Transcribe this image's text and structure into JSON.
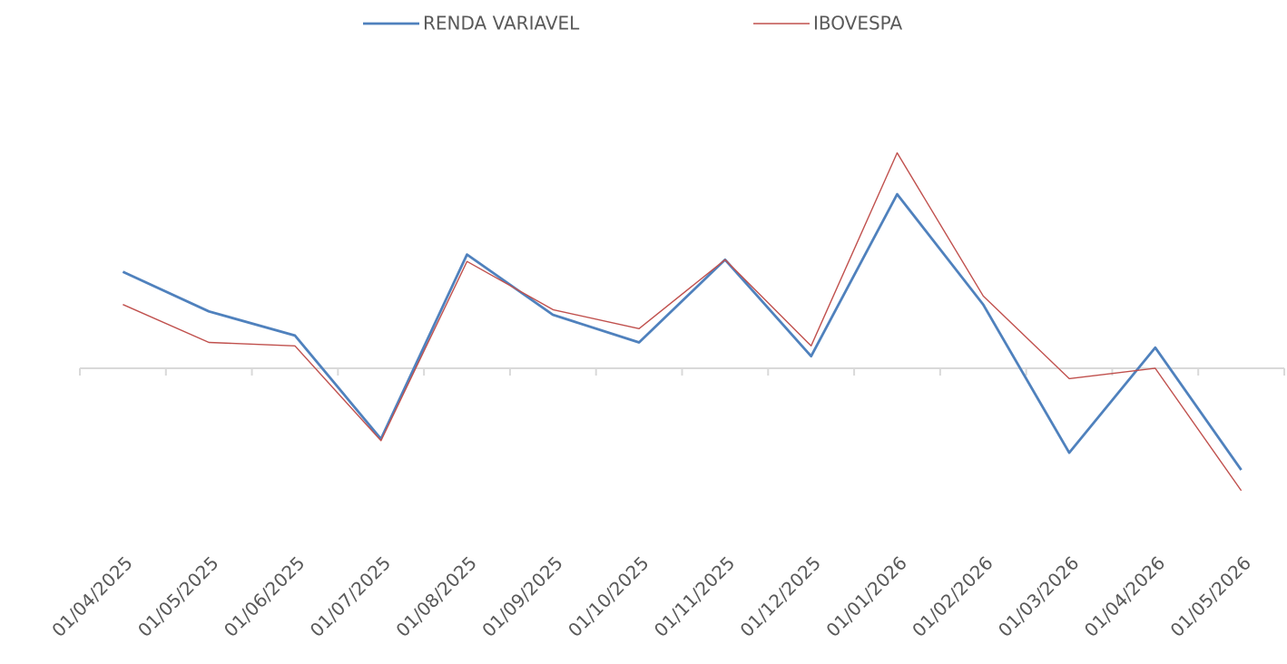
{
  "chart_data": {
    "type": "line",
    "categories": [
      "01/04/2025",
      "01/05/2025",
      "01/06/2025",
      "01/07/2025",
      "01/08/2025",
      "01/09/2025",
      "01/10/2025",
      "01/11/2025",
      "01/12/2025",
      "01/01/2026",
      "01/02/2026",
      "01/03/2026",
      "01/04/2026",
      "01/05/2026"
    ],
    "series": [
      {
        "name": "RENDA VARIAVEL",
        "color": "#4f81bd",
        "values": [
          5.6,
          3.3,
          1.9,
          -4.1,
          6.6,
          3.1,
          1.5,
          6.3,
          0.7,
          10.1,
          3.7,
          -4.9,
          1.2,
          -5.9
        ]
      },
      {
        "name": "IBOVESPA",
        "color": "#c0504d",
        "values": [
          3.7,
          1.5,
          1.3,
          -4.2,
          6.2,
          3.4,
          2.3,
          6.3,
          1.3,
          12.5,
          4.2,
          -0.6,
          0,
          -7.1
        ]
      }
    ],
    "ylim": [
      -10,
      18
    ],
    "legend": "top"
  }
}
